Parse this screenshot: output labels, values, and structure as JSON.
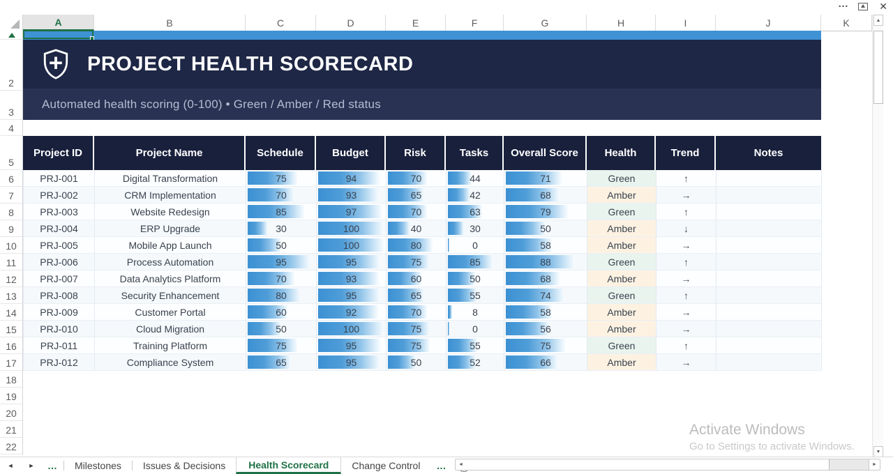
{
  "titlebar": {
    "more_label": "…",
    "close_label": "✕"
  },
  "grid": {
    "column_letters": [
      "A",
      "B",
      "C",
      "D",
      "E",
      "F",
      "G",
      "H",
      "I",
      "J",
      "K"
    ],
    "active_column_letter": "A",
    "row_numbers": [
      "2",
      "3",
      "4",
      "5",
      "6",
      "7",
      "8",
      "9",
      "10",
      "11",
      "12",
      "13",
      "14",
      "15",
      "16",
      "17",
      "18",
      "19",
      "20",
      "21",
      "22"
    ]
  },
  "banner": {
    "title": "PROJECT HEALTH SCORECARD",
    "subtitle": "Automated health scoring (0-100) • Green / Amber / Red status"
  },
  "scorecard": {
    "columns": [
      "Project ID",
      "Project Name",
      "Schedule",
      "Budget",
      "Risk",
      "Tasks",
      "Overall Score",
      "Health",
      "Trend",
      "Notes"
    ],
    "projects": [
      {
        "id": "PRJ-001",
        "name": "Digital Transformation",
        "schedule": 75,
        "budget": 94,
        "risk": 70,
        "tasks": 44,
        "overall": 71,
        "health": "Green",
        "trend": "↑",
        "notes": ""
      },
      {
        "id": "PRJ-002",
        "name": "CRM Implementation",
        "schedule": 70,
        "budget": 93,
        "risk": 65,
        "tasks": 42,
        "overall": 68,
        "health": "Amber",
        "trend": "→",
        "notes": ""
      },
      {
        "id": "PRJ-003",
        "name": "Website Redesign",
        "schedule": 85,
        "budget": 97,
        "risk": 70,
        "tasks": 63,
        "overall": 79,
        "health": "Green",
        "trend": "↑",
        "notes": ""
      },
      {
        "id": "PRJ-004",
        "name": "ERP Upgrade",
        "schedule": 30,
        "budget": 100,
        "risk": 40,
        "tasks": 30,
        "overall": 50,
        "health": "Amber",
        "trend": "↓",
        "notes": ""
      },
      {
        "id": "PRJ-005",
        "name": "Mobile App Launch",
        "schedule": 50,
        "budget": 100,
        "risk": 80,
        "tasks": 0,
        "overall": 58,
        "health": "Amber",
        "trend": "→",
        "notes": ""
      },
      {
        "id": "PRJ-006",
        "name": "Process Automation",
        "schedule": 95,
        "budget": 95,
        "risk": 75,
        "tasks": 85,
        "overall": 88,
        "health": "Green",
        "trend": "↑",
        "notes": ""
      },
      {
        "id": "PRJ-007",
        "name": "Data Analytics Platform",
        "schedule": 70,
        "budget": 93,
        "risk": 60,
        "tasks": 50,
        "overall": 68,
        "health": "Amber",
        "trend": "→",
        "notes": ""
      },
      {
        "id": "PRJ-008",
        "name": "Security Enhancement",
        "schedule": 80,
        "budget": 95,
        "risk": 65,
        "tasks": 55,
        "overall": 74,
        "health": "Green",
        "trend": "↑",
        "notes": ""
      },
      {
        "id": "PRJ-009",
        "name": "Customer Portal",
        "schedule": 60,
        "budget": 92,
        "risk": 70,
        "tasks": 8,
        "overall": 58,
        "health": "Amber",
        "trend": "→",
        "notes": ""
      },
      {
        "id": "PRJ-010",
        "name": "Cloud Migration",
        "schedule": 50,
        "budget": 100,
        "risk": 75,
        "tasks": 0,
        "overall": 56,
        "health": "Amber",
        "trend": "→",
        "notes": ""
      },
      {
        "id": "PRJ-011",
        "name": "Training Platform",
        "schedule": 75,
        "budget": 95,
        "risk": 75,
        "tasks": 55,
        "overall": 75,
        "health": "Green",
        "trend": "↑",
        "notes": ""
      },
      {
        "id": "PRJ-012",
        "name": "Compliance System",
        "schedule": 65,
        "budget": 95,
        "risk": 50,
        "tasks": 52,
        "overall": 66,
        "health": "Amber",
        "trend": "→",
        "notes": ""
      }
    ]
  },
  "sheet_tabs": {
    "nav_left": "◄",
    "nav_right": "►",
    "overflow_left": "…",
    "overflow_right": "…",
    "items": [
      "Milestones",
      "Issues & Decisions",
      "Health Scorecard",
      "Change Control"
    ],
    "active": "Health Scorecard",
    "add_label": "+"
  },
  "watermark": {
    "line1": "Activate Windows",
    "line2": "Go to Settings to activate Windows."
  },
  "colors": {
    "accent_green": "#1e7145",
    "banner_bg": "#1e2745",
    "subtitle_bg": "#293253",
    "table_header_bg": "#18203c",
    "databar_blue": "#3c91d3",
    "row1_blue": "#3f92d4",
    "health_green_bg": "#e9f4ee",
    "health_amber_bg": "#fdf2e2"
  }
}
